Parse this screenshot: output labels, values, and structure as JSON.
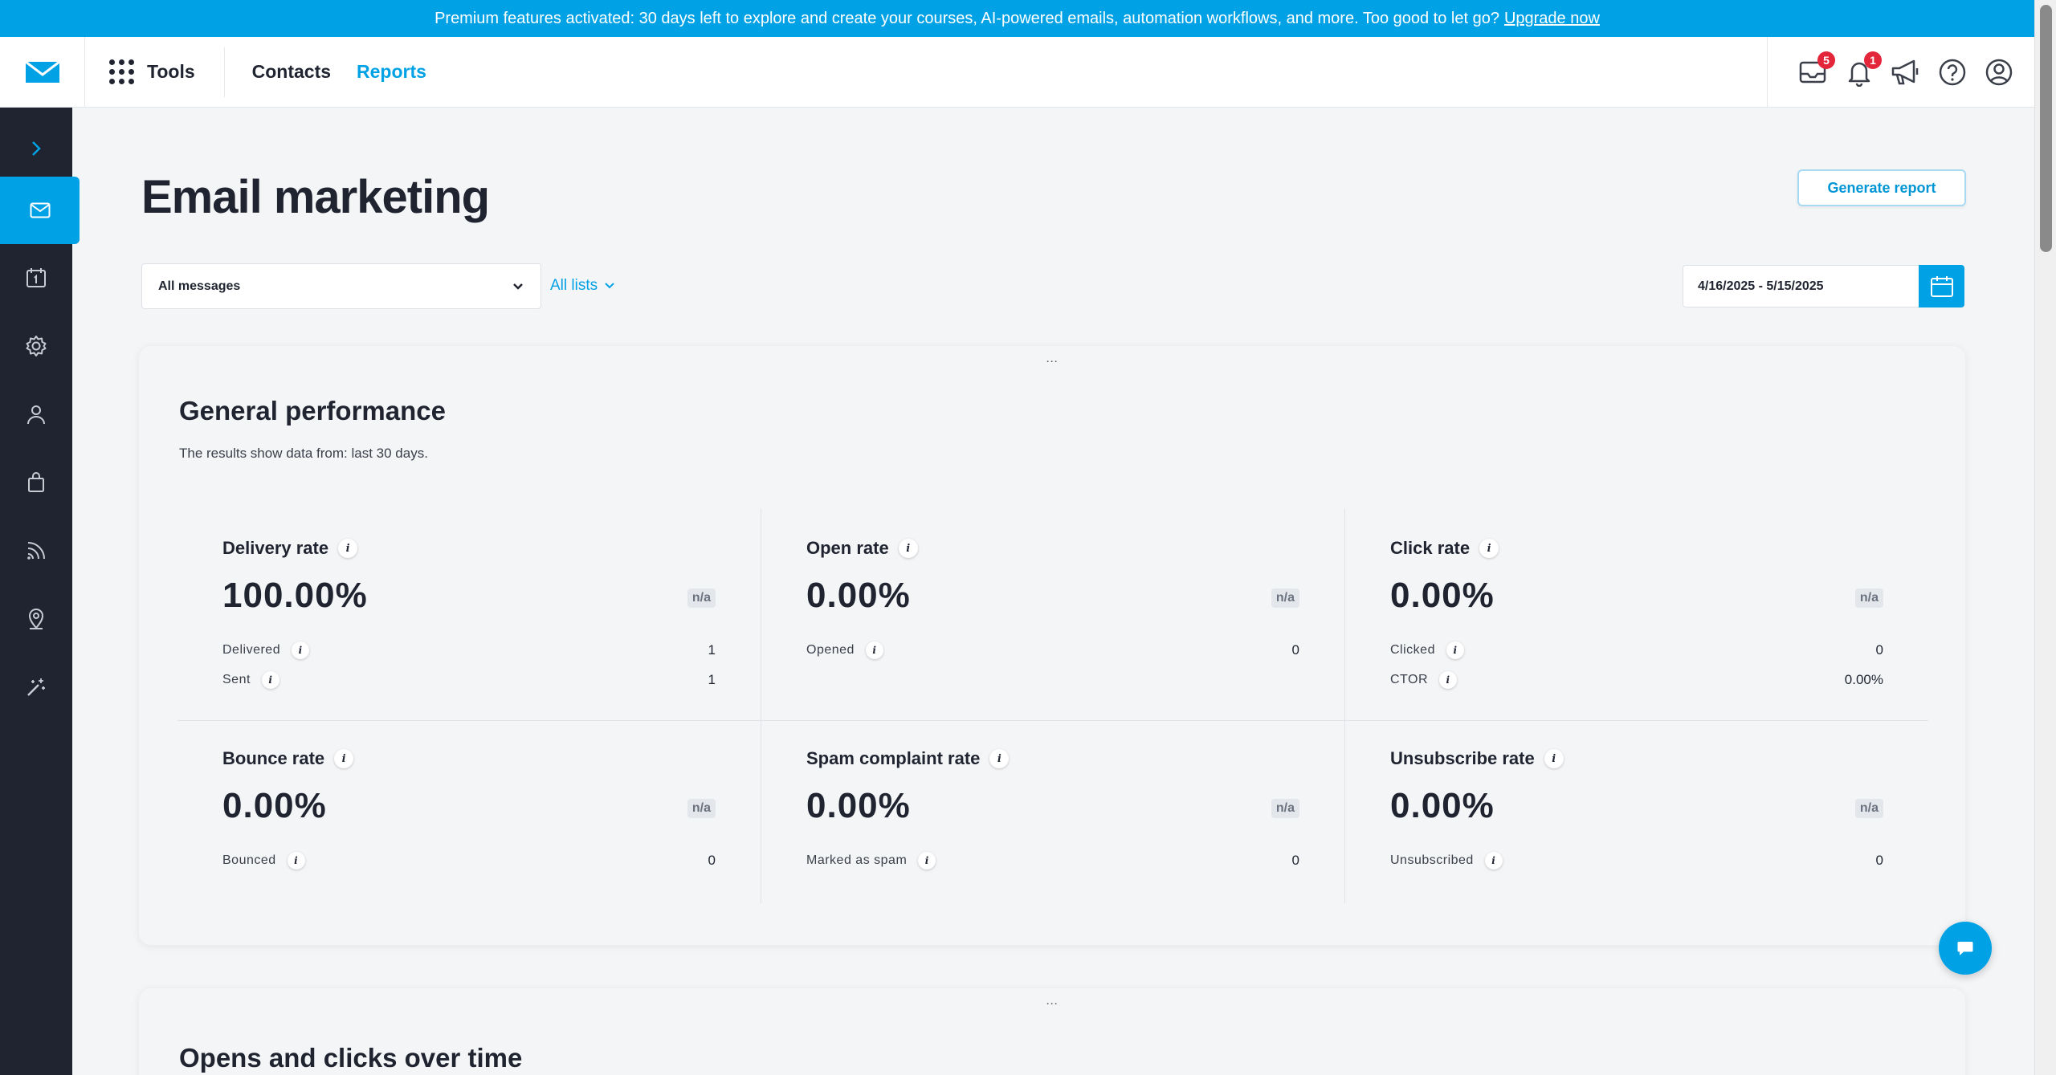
{
  "banner": {
    "text": "Premium features activated: 30 days left to explore and create your courses, AI-powered emails, automation workflows, and more. Too good to let go?",
    "link": "Upgrade now"
  },
  "nav": {
    "tools_label": "Tools",
    "links": [
      "Contacts",
      "Reports"
    ],
    "active_link": "Reports",
    "inbox_badge": "5",
    "notifications_badge": "1"
  },
  "page": {
    "title": "Email marketing",
    "generate_report": "Generate report"
  },
  "filters": {
    "message_select": "All messages",
    "lists": "All lists",
    "date_range": "4/16/2025 - 5/15/2025"
  },
  "general": {
    "title": "General performance",
    "subtitle": "The results show data from: last 30 days.",
    "metrics": [
      {
        "title": "Delivery rate",
        "value": "100.00%",
        "na": "n/a",
        "rows": [
          {
            "label": "Delivered",
            "value": "1"
          },
          {
            "label": "Sent",
            "value": "1"
          }
        ]
      },
      {
        "title": "Open rate",
        "value": "0.00%",
        "na": "n/a",
        "rows": [
          {
            "label": "Opened",
            "value": "0"
          }
        ]
      },
      {
        "title": "Click rate",
        "value": "0.00%",
        "na": "n/a",
        "rows": [
          {
            "label": "Clicked",
            "value": "0"
          },
          {
            "label": "CTOR",
            "value": "0.00%"
          }
        ]
      },
      {
        "title": "Bounce rate",
        "value": "0.00%",
        "na": "n/a",
        "rows": [
          {
            "label": "Bounced",
            "value": "0"
          }
        ]
      },
      {
        "title": "Spam complaint rate",
        "value": "0.00%",
        "na": "n/a",
        "rows": [
          {
            "label": "Marked as spam",
            "value": "0"
          }
        ]
      },
      {
        "title": "Unsubscribe rate",
        "value": "0.00%",
        "na": "n/a",
        "rows": [
          {
            "label": "Unsubscribed",
            "value": "0"
          }
        ]
      }
    ]
  },
  "opens_clicks": {
    "title": "Opens and clicks over time"
  },
  "icons": {
    "info_glyph": "i",
    "drag_glyph": "˙˙˙"
  },
  "colors": {
    "accent": "#00a2e5",
    "sidebar": "#1f2430",
    "badge": "#e4263a"
  }
}
